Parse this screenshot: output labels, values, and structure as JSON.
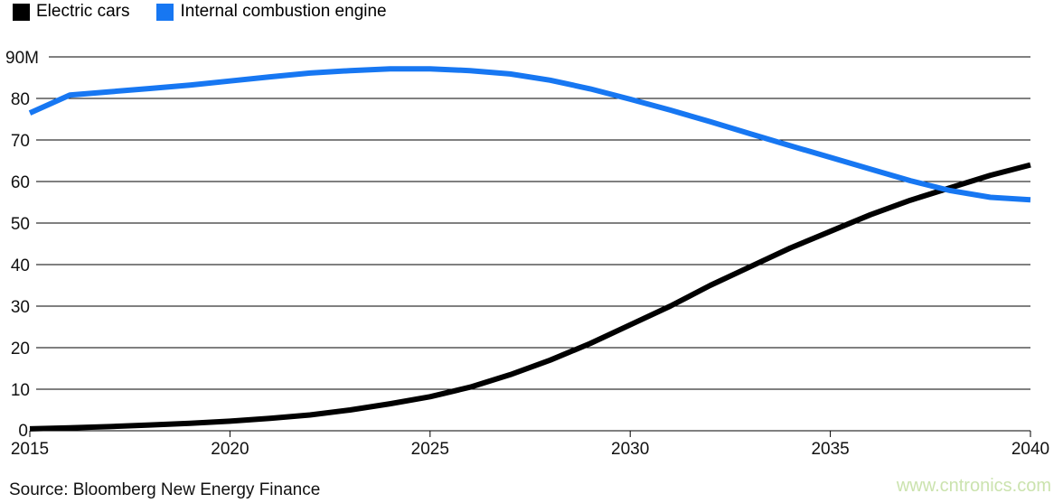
{
  "legend": [
    {
      "label": "Electric cars",
      "color": "#000000"
    },
    {
      "label": "Internal combustion engine",
      "color": "#1777f2"
    }
  ],
  "source": "Source: Bloomberg New Energy Finance",
  "watermark": "www.cntronics.com",
  "colors": {
    "ev_line": "#000000",
    "ice_line": "#1777f2",
    "grid": "#000000",
    "axis_text": "#111111",
    "watermark": "#cbe3ae"
  },
  "chart_data": {
    "type": "line",
    "title": "",
    "xlabel": "",
    "ylabel": "",
    "y_top_label": "90M",
    "x": [
      2015,
      2016,
      2017,
      2018,
      2019,
      2020,
      2021,
      2022,
      2023,
      2024,
      2025,
      2026,
      2027,
      2028,
      2029,
      2030,
      2031,
      2032,
      2033,
      2034,
      2035,
      2036,
      2037,
      2038,
      2039,
      2040
    ],
    "series": [
      {
        "name": "Electric cars",
        "color": "#000000",
        "values": [
          0.45,
          0.7,
          1.0,
          1.4,
          1.8,
          2.3,
          3.0,
          3.8,
          5.0,
          6.5,
          8.2,
          10.5,
          13.5,
          17,
          21,
          25.5,
          30,
          35,
          39.5,
          44,
          48,
          52,
          55.5,
          58.5,
          61.5,
          64
        ]
      },
      {
        "name": "Internal combustion engine",
        "color": "#1777f2",
        "values": [
          76.5,
          80.8,
          81.6,
          82.4,
          83.2,
          84.2,
          85.2,
          86.1,
          86.7,
          87.1,
          87.1,
          86.7,
          85.9,
          84.4,
          82.3,
          79.8,
          77.2,
          74.4,
          71.5,
          68.6,
          65.8,
          63.0,
          60.2,
          57.8,
          56.2,
          55.6
        ]
      }
    ],
    "yticks": [
      0,
      10,
      20,
      30,
      40,
      50,
      60,
      70,
      80,
      90
    ],
    "xticks": [
      2015,
      2020,
      2025,
      2030,
      2035,
      2040
    ],
    "xlim": [
      2015,
      2040
    ],
    "ylim": [
      0,
      90
    ],
    "grid": true,
    "legend_position": "top-left"
  }
}
